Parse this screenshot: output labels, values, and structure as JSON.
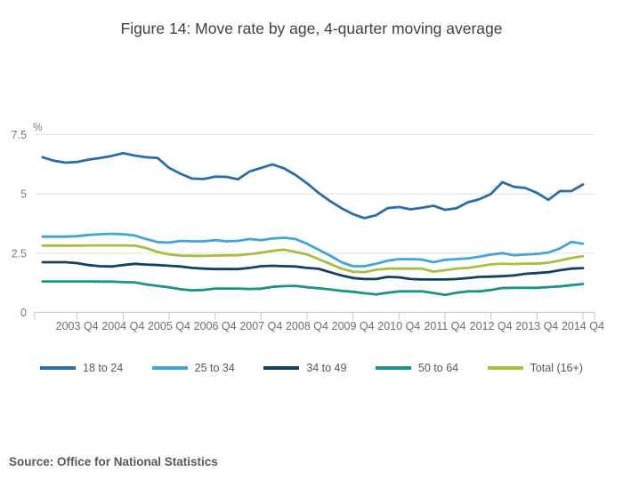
{
  "title": "Figure 14: Move rate by age, 4-quarter moving average",
  "source": "Source: Office for National Statistics",
  "chart_data": {
    "type": "line",
    "title": "Figure 14: Move rate by age, 4-quarter moving average",
    "ylabel": "%",
    "xlabel": "",
    "ylim": [
      0,
      7.5
    ],
    "y_ticks": [
      0,
      2.5,
      5,
      7.5
    ],
    "grid": true,
    "legend_position": "bottom",
    "x_tick_labels": [
      "2003 Q4",
      "2004 Q4",
      "2005 Q4",
      "2006 Q4",
      "2007 Q4",
      "2008 Q4",
      "2009 Q4",
      "2010 Q4",
      "2011 Q4",
      "2012 Q4",
      "2013 Q4",
      "2014 Q4"
    ],
    "x": [
      "2003 Q1",
      "2003 Q2",
      "2003 Q3",
      "2003 Q4",
      "2004 Q1",
      "2004 Q2",
      "2004 Q3",
      "2004 Q4",
      "2005 Q1",
      "2005 Q2",
      "2005 Q3",
      "2005 Q4",
      "2006 Q1",
      "2006 Q2",
      "2006 Q3",
      "2006 Q4",
      "2007 Q1",
      "2007 Q2",
      "2007 Q3",
      "2007 Q4",
      "2008 Q1",
      "2008 Q2",
      "2008 Q3",
      "2008 Q4",
      "2009 Q1",
      "2009 Q2",
      "2009 Q3",
      "2009 Q4",
      "2010 Q1",
      "2010 Q2",
      "2010 Q3",
      "2010 Q4",
      "2011 Q1",
      "2011 Q2",
      "2011 Q3",
      "2011 Q4",
      "2012 Q1",
      "2012 Q2",
      "2012 Q3",
      "2012 Q4",
      "2013 Q1",
      "2013 Q2",
      "2013 Q3",
      "2013 Q4",
      "2014 Q1",
      "2014 Q2",
      "2014 Q3",
      "2014 Q4"
    ],
    "series": [
      {
        "name": "18 to 24",
        "color": "#2c6da6",
        "values": [
          6.55,
          6.4,
          6.32,
          6.35,
          6.45,
          6.52,
          6.6,
          6.72,
          6.62,
          6.55,
          6.52,
          6.1,
          5.85,
          5.65,
          5.63,
          5.73,
          5.72,
          5.62,
          5.95,
          6.1,
          6.25,
          6.08,
          5.8,
          5.45,
          5.05,
          4.7,
          4.4,
          4.15,
          3.98,
          4.1,
          4.4,
          4.45,
          4.35,
          4.42,
          4.5,
          4.33,
          4.4,
          4.65,
          4.78,
          5.0,
          5.5,
          5.3,
          5.25,
          5.05,
          4.75,
          5.12,
          5.12,
          5.4
        ]
      },
      {
        "name": "25 to 34",
        "color": "#42a5d3",
        "values": [
          3.2,
          3.2,
          3.2,
          3.22,
          3.27,
          3.3,
          3.32,
          3.3,
          3.25,
          3.1,
          2.97,
          2.95,
          3.02,
          3.0,
          3.0,
          3.05,
          3.0,
          3.02,
          3.1,
          3.05,
          3.12,
          3.15,
          3.1,
          2.9,
          2.65,
          2.4,
          2.12,
          1.95,
          1.95,
          2.05,
          2.18,
          2.25,
          2.25,
          2.23,
          2.12,
          2.22,
          2.25,
          2.28,
          2.35,
          2.44,
          2.5,
          2.41,
          2.44,
          2.47,
          2.53,
          2.7,
          2.98,
          2.9
        ]
      },
      {
        "name": "34 to 49",
        "color": "#173f5f",
        "values": [
          2.12,
          2.12,
          2.12,
          2.08,
          2.0,
          1.95,
          1.94,
          2.0,
          2.05,
          2.02,
          2.0,
          1.97,
          1.94,
          1.88,
          1.85,
          1.83,
          1.83,
          1.83,
          1.88,
          1.95,
          1.97,
          1.95,
          1.94,
          1.88,
          1.84,
          1.7,
          1.56,
          1.45,
          1.41,
          1.41,
          1.5,
          1.48,
          1.41,
          1.39,
          1.39,
          1.39,
          1.41,
          1.45,
          1.5,
          1.51,
          1.53,
          1.56,
          1.63,
          1.66,
          1.7,
          1.78,
          1.85,
          1.87
        ]
      },
      {
        "name": "50 to 64",
        "color": "#1e9287",
        "values": [
          1.31,
          1.31,
          1.31,
          1.31,
          1.31,
          1.3,
          1.3,
          1.28,
          1.27,
          1.18,
          1.12,
          1.06,
          0.98,
          0.93,
          0.95,
          1.01,
          1.01,
          1.01,
          0.99,
          1.0,
          1.08,
          1.11,
          1.12,
          1.06,
          1.02,
          0.97,
          0.91,
          0.87,
          0.81,
          0.76,
          0.83,
          0.89,
          0.89,
          0.89,
          0.82,
          0.74,
          0.83,
          0.89,
          0.89,
          0.95,
          1.03,
          1.04,
          1.04,
          1.04,
          1.07,
          1.1,
          1.15,
          1.2
        ]
      },
      {
        "name": "Total (16+)",
        "color": "#a9bd3e",
        "values": [
          2.82,
          2.82,
          2.82,
          2.82,
          2.83,
          2.83,
          2.83,
          2.83,
          2.82,
          2.72,
          2.55,
          2.45,
          2.4,
          2.39,
          2.39,
          2.4,
          2.41,
          2.41,
          2.46,
          2.52,
          2.6,
          2.65,
          2.55,
          2.45,
          2.25,
          2.05,
          1.85,
          1.72,
          1.7,
          1.8,
          1.85,
          1.85,
          1.85,
          1.85,
          1.72,
          1.78,
          1.85,
          1.88,
          1.95,
          2.03,
          2.06,
          2.04,
          2.06,
          2.06,
          2.1,
          2.19,
          2.3,
          2.37
        ]
      }
    ],
    "colors": {
      "axis_line": "#bed2dd",
      "gridline": "#e4e4e4",
      "tick_label": "#6e6e6e",
      "y_tick_label": "#7b7b7b"
    }
  }
}
